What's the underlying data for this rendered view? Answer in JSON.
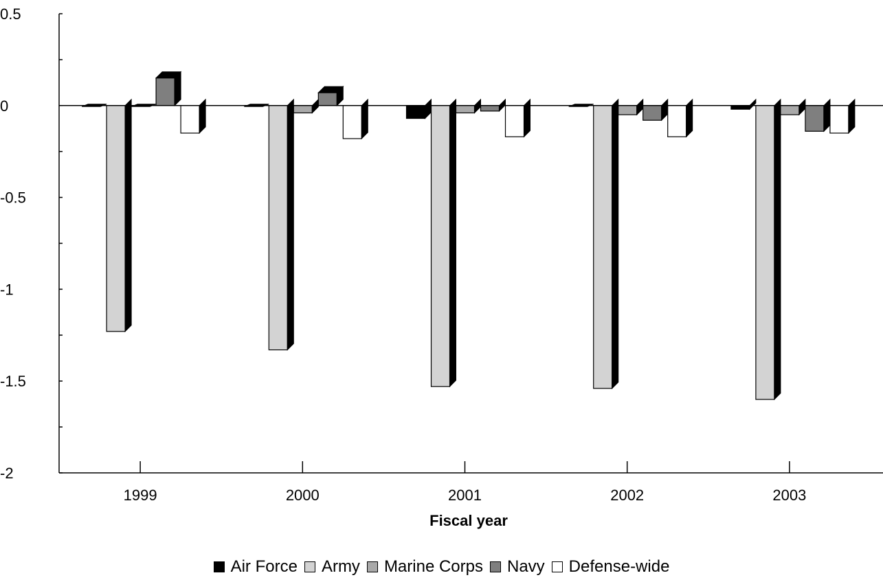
{
  "chart_data": {
    "type": "bar",
    "style": "3d",
    "title": "",
    "xlabel": "Fiscal year",
    "ylabel": "",
    "categories": [
      "1999",
      "2000",
      "2001",
      "2002",
      "2003"
    ],
    "ylim": [
      -2,
      0.5
    ],
    "yticks": [
      0.5,
      0,
      -0.5,
      -1,
      -1.5,
      -2
    ],
    "ytick_labels": [
      "0.5",
      "0",
      "-0.5",
      "-1",
      "-1.5",
      "-2"
    ],
    "grid": false,
    "legend_position": "bottom",
    "series": [
      {
        "name": "Air Force",
        "color": "#000000",
        "values": [
          -0.005,
          -0.005,
          -0.07,
          -0.005,
          -0.02
        ]
      },
      {
        "name": "Army",
        "color": "#d3d3d3",
        "values": [
          -1.23,
          -1.33,
          -1.53,
          -1.54,
          -1.6
        ]
      },
      {
        "name": "Marine Corps",
        "color": "#a9a9a9",
        "values": [
          0,
          -0.04,
          -0.04,
          -0.05,
          -0.05
        ]
      },
      {
        "name": "Navy",
        "color": "#7f7f7f",
        "values": [
          0.15,
          0.07,
          -0.03,
          -0.08,
          -0.14
        ]
      },
      {
        "name": "Defense-wide",
        "color": "#ffffff",
        "values": [
          -0.15,
          -0.18,
          -0.17,
          -0.17,
          -0.15
        ]
      }
    ]
  }
}
